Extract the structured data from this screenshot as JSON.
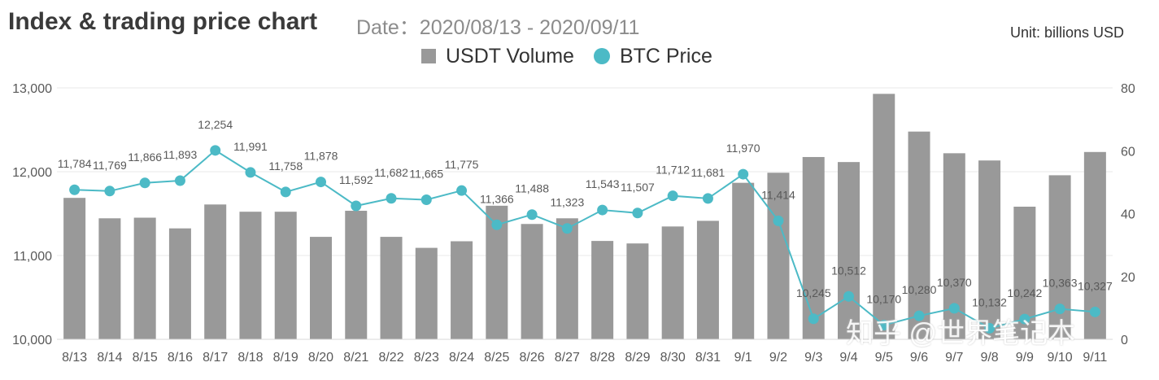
{
  "title": "Index & trading price chart",
  "subtitle": "Date：2020/08/13 - 2020/09/11",
  "unit": "Unit: billions USD",
  "watermark": "知乎 @世界笔记本",
  "colors": {
    "bar": "#999999",
    "line": "#4cbac6",
    "grid": "#e8e8e8"
  },
  "chart_data": {
    "type": "bar",
    "categories": [
      "8/13",
      "8/14",
      "8/15",
      "8/16",
      "8/17",
      "8/18",
      "8/19",
      "8/20",
      "8/21",
      "8/22",
      "8/23",
      "8/24",
      "8/25",
      "8/26",
      "8/27",
      "8/28",
      "8/29",
      "8/30",
      "8/31",
      "9/1",
      "9/2",
      "9/3",
      "9/4",
      "9/5",
      "9/6",
      "9/7",
      "9/8",
      "9/9",
      "9/10",
      "9/11"
    ],
    "series": [
      {
        "name": "USDT Volume",
        "type": "bar",
        "axis": "right",
        "values": [
          45,
          38.5,
          38.7,
          35.3,
          42.9,
          40.6,
          40.6,
          32.6,
          40.9,
          32.6,
          29.1,
          31.2,
          42.5,
          36.7,
          38.5,
          31.3,
          30.5,
          35.9,
          37.7,
          49.8,
          53,
          58,
          56.4,
          78.1,
          66.1,
          59.2,
          56.9,
          42.2,
          52.2,
          59.6
        ]
      },
      {
        "name": "BTC Price",
        "type": "line",
        "axis": "left",
        "values": [
          11784,
          11769,
          11866,
          11893,
          12254,
          11991,
          11758,
          11878,
          11592,
          11682,
          11665,
          11775,
          11366,
          11488,
          11323,
          11543,
          11507,
          11712,
          11681,
          11970,
          11414,
          10245,
          10512,
          10170,
          10280,
          10370,
          10132,
          10242,
          10363,
          10327
        ],
        "labels": [
          "11,784",
          "11,769",
          "11,866",
          "11,893",
          "12,254",
          "11,991",
          "11,758",
          "11,878",
          "11,592",
          "11,682",
          "11,665",
          "11,775",
          "11,366",
          "11,488",
          "11,323",
          "11,543",
          "11,507",
          "11,712",
          "11,681",
          "11,970",
          "11,414",
          "10,245",
          "10,512",
          "10,170",
          "10,280",
          "10,370",
          "10,132",
          "10,242",
          "10,363",
          "10,327"
        ]
      }
    ],
    "y_left": {
      "range": [
        10000,
        13000
      ],
      "ticks": [
        "10,000",
        "11,000",
        "12,000",
        "13,000"
      ]
    },
    "y_right": {
      "range": [
        0,
        80
      ],
      "ticks": [
        "0",
        "20",
        "40",
        "60",
        "80"
      ]
    },
    "legend": {
      "position": "top-center",
      "items": [
        "USDT Volume",
        "BTC Price"
      ]
    },
    "grid": true
  }
}
